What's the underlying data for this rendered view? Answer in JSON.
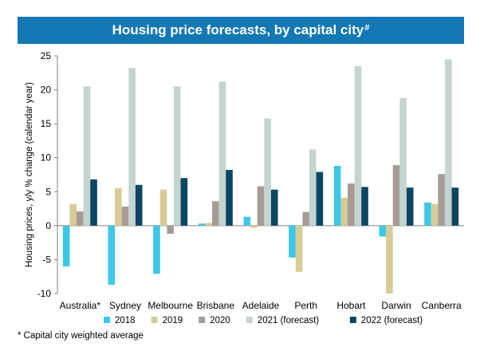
{
  "title": "Housing price forecasts, by capital city",
  "title_mark": "#",
  "footnote": "* Capital city weighted average",
  "chart_data": {
    "type": "bar",
    "ylabel": "Housing prices, y/y % change (calendar year)",
    "xlabel": "",
    "ylim": [
      -10,
      25
    ],
    "yticks": [
      -10,
      -5,
      0,
      5,
      10,
      15,
      20,
      25
    ],
    "grid": false,
    "legend_position": "bottom",
    "categories": [
      "Australia*",
      "Sydney",
      "Melbourne",
      "Brisbane",
      "Adelaide",
      "Perth",
      "Hobart",
      "Darwin",
      "Canberra"
    ],
    "series": [
      {
        "name": "2018",
        "color": "#3cc8e6",
        "values": [
          -6.0,
          -8.7,
          -7.1,
          0.3,
          1.3,
          -4.7,
          8.8,
          -1.6,
          3.4
        ]
      },
      {
        "name": "2019",
        "color": "#d8cc96",
        "values": [
          3.2,
          5.5,
          5.3,
          0.4,
          -0.3,
          -6.8,
          4.1,
          -10.0,
          3.2
        ]
      },
      {
        "name": "2020",
        "color": "#a89b96",
        "values": [
          2.1,
          2.8,
          -1.2,
          3.6,
          5.8,
          2.0,
          6.2,
          8.9,
          7.6
        ]
      },
      {
        "name": "2021 (forecast)",
        "color": "#c4d4cf",
        "values": [
          20.5,
          23.2,
          20.5,
          21.2,
          15.8,
          11.2,
          23.5,
          18.8,
          24.5
        ]
      },
      {
        "name": "2022 (forecast)",
        "color": "#0b4664",
        "values": [
          6.8,
          6.0,
          7.0,
          8.2,
          5.3,
          7.9,
          5.7,
          5.6,
          5.6
        ]
      }
    ]
  }
}
